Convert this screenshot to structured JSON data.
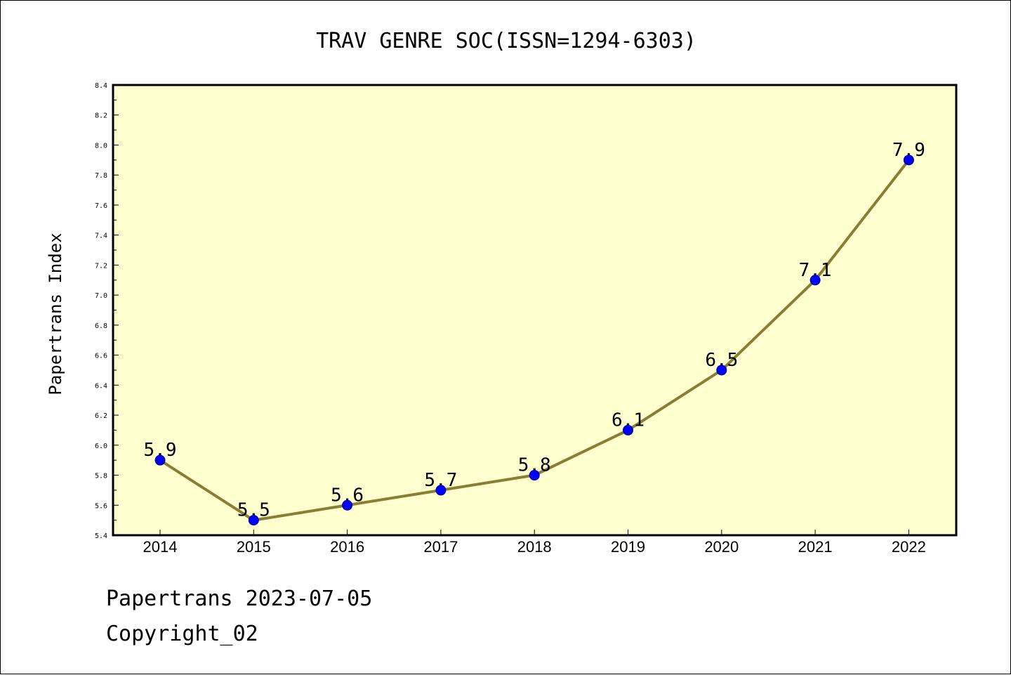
{
  "chart_data": {
    "type": "line",
    "title": "TRAV GENRE SOC(ISSN=1294-6303)",
    "xlabel": "",
    "ylabel": "Papertrans Index",
    "x": [
      "2014",
      "2015",
      "2016",
      "2017",
      "2018",
      "2019",
      "2020",
      "2021",
      "2022"
    ],
    "series": [
      {
        "values": [
          5.9,
          5.5,
          5.6,
          5.7,
          5.8,
          6.1,
          6.5,
          7.1,
          7.9
        ]
      }
    ],
    "data_labels": [
      "5.9",
      "5.5",
      "5.6",
      "5.7",
      "5.8",
      "6.1",
      "6.5",
      "7.1",
      "7.9"
    ],
    "ylim": [
      5.4,
      8.4
    ],
    "yticks": [
      "5.4",
      "5.6",
      "5.8",
      "6.0",
      "6.2",
      "6.4",
      "6.6",
      "6.8",
      "7.0",
      "7.2",
      "7.4",
      "7.6",
      "7.8",
      "8.0",
      "8.2",
      "8.4"
    ],
    "grid": false,
    "colors": {
      "plot_background": "#ffffd0",
      "line": "#8b7d35",
      "marker_fill": "#0000ff",
      "marker_edge": "#00008b"
    }
  },
  "footer": {
    "line1": "Papertrans 2023-07-05",
    "line2": "Copyright_02"
  }
}
